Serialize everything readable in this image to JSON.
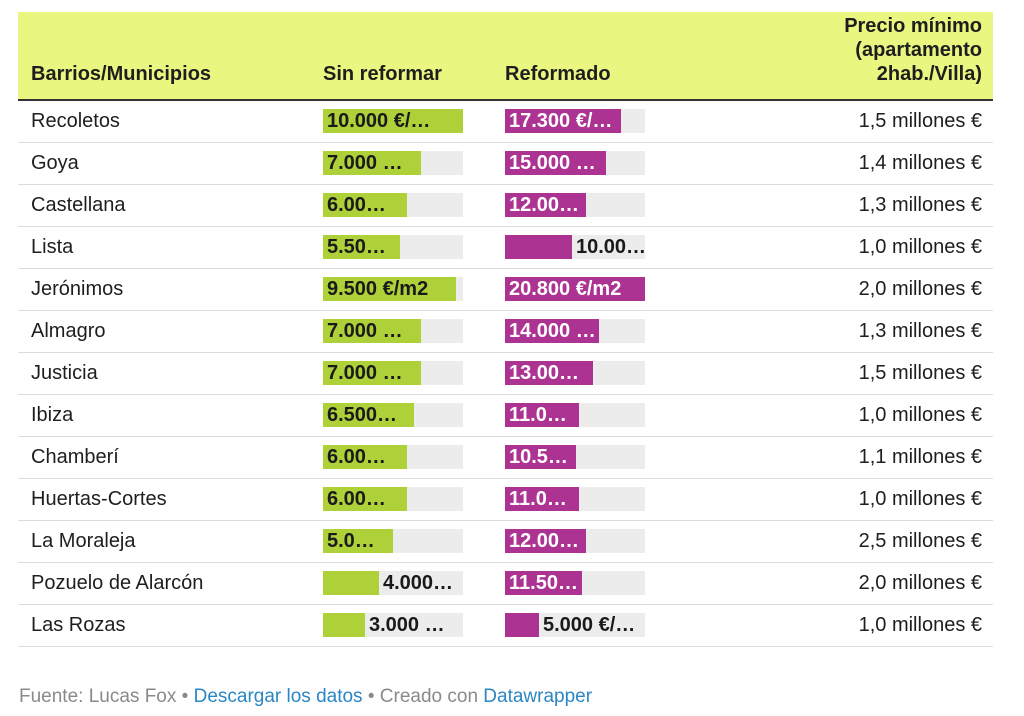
{
  "colors": {
    "header_bg": "#e9f781",
    "sin_reformar_bar": "#aed13a",
    "reformado_bar": "#ad3393",
    "bar_track": "#ececec",
    "link": "#2c86c4"
  },
  "table": {
    "headers": {
      "barrios": "Barrios/Municipios",
      "sin_reformar": "Sin reformar",
      "reformado": "Reformado",
      "precio_minimo": [
        "Precio mínimo",
        "(apartamento",
        "2hab./Villa)"
      ]
    }
  },
  "chart_data": {
    "type": "table",
    "columns": [
      "Barrios/Municipios",
      "Sin reformar",
      "Reformado",
      "Precio mínimo (apartamento 2hab./Villa)"
    ],
    "bar_max": {
      "sin_reformar": 10000,
      "reformado": 20800
    },
    "rows": [
      {
        "name": "Recoletos",
        "sin_reformar": 10000,
        "sin_label": "10.000 €/…",
        "reformado": 17300,
        "ref_label": "17.300 €/…",
        "min": "1,5 millones €"
      },
      {
        "name": "Goya",
        "sin_reformar": 7000,
        "sin_label": "7.000 …",
        "reformado": 15000,
        "ref_label": "15.000 …",
        "min": "1,4 millones €"
      },
      {
        "name": "Castellana",
        "sin_reformar": 6000,
        "sin_label": "6.00…",
        "reformado": 12000,
        "ref_label": "12.00…",
        "min": "1,3 millones €"
      },
      {
        "name": "Lista",
        "sin_reformar": 5500,
        "sin_label": "5.50…",
        "reformado": 10000,
        "ref_label": "10.00…",
        "min": "1,0 millones €"
      },
      {
        "name": "Jerónimos",
        "sin_reformar": 9500,
        "sin_label": "9.500 €/m2",
        "reformado": 20800,
        "ref_label": "20.800 €/m2",
        "min": "2,0 millones €"
      },
      {
        "name": "Almagro",
        "sin_reformar": 7000,
        "sin_label": "7.000 …",
        "reformado": 14000,
        "ref_label": "14.000 …",
        "min": "1,3 millones €"
      },
      {
        "name": "Justicia",
        "sin_reformar": 7000,
        "sin_label": "7.000 …",
        "reformado": 13000,
        "ref_label": "13.00…",
        "min": "1,5 millones €"
      },
      {
        "name": "Ibiza",
        "sin_reformar": 6500,
        "sin_label": "6.500…",
        "reformado": 11000,
        "ref_label": "11.0…",
        "min": "1,0 millones €"
      },
      {
        "name": "Chamberí",
        "sin_reformar": 6000,
        "sin_label": "6.00…",
        "reformado": 10500,
        "ref_label": "10.5…",
        "min": "1,1 millones €"
      },
      {
        "name": "Huertas-Cortes",
        "sin_reformar": 6000,
        "sin_label": "6.00…",
        "reformado": 11000,
        "ref_label": "11.0…",
        "min": "1,0 millones €"
      },
      {
        "name": "La Moraleja",
        "sin_reformar": 5000,
        "sin_label": "5.0…",
        "reformado": 12000,
        "ref_label": "12.00…",
        "min": "2,5 millones €"
      },
      {
        "name": "Pozuelo de Alarcón",
        "sin_reformar": 4000,
        "sin_label": "4.000…",
        "reformado": 11500,
        "ref_label": "11.50…",
        "min": "2,0 millones €"
      },
      {
        "name": "Las Rozas",
        "sin_reformar": 3000,
        "sin_label": "3.000 …",
        "reformado": 5000,
        "ref_label": "5.000 €/…",
        "min": "1,0 millones €"
      }
    ]
  },
  "footer": {
    "source": "Fuente: Lucas Fox",
    "sep": " • ",
    "download": "Descargar los datos",
    "created_with": "Creado con ",
    "datawrapper": "Datawrapper"
  }
}
